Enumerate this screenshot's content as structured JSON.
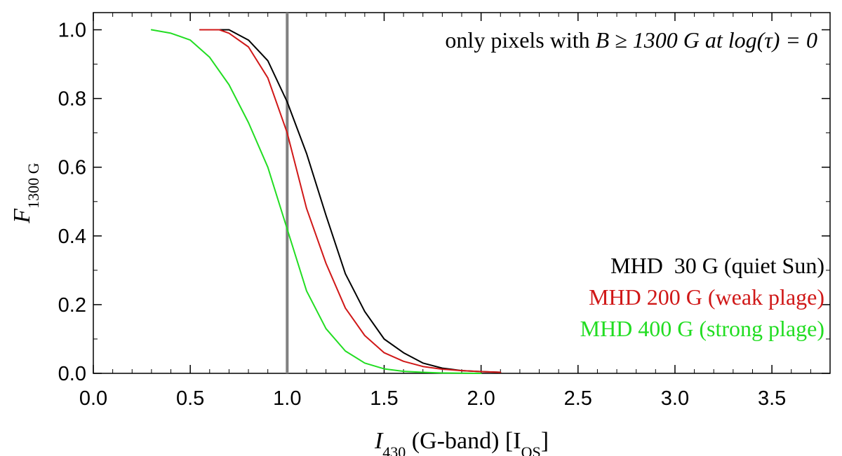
{
  "chart_data": {
    "type": "line",
    "xlabel": {
      "var": "I",
      "sub": "430",
      "text": " (G-band) [I",
      "sub2": "QS",
      "close": "]"
    },
    "ylabel": {
      "var": "F",
      "sub": "1300 G"
    },
    "annotation": {
      "prefix": "only pixels with ",
      "math": "B ≥ 1300 G at log(τ) = 0"
    },
    "xlim": [
      0.0,
      3.8
    ],
    "ylim": [
      0.0,
      1.05
    ],
    "x_ticks": [
      "0.0",
      "0.5",
      "1.0",
      "1.5",
      "2.0",
      "2.5",
      "3.0",
      "3.5"
    ],
    "y_ticks": [
      "0.0",
      "0.2",
      "0.4",
      "0.6",
      "0.8",
      "1.0"
    ],
    "x_tick_values": [
      0.0,
      0.5,
      1.0,
      1.5,
      2.0,
      2.5,
      3.0,
      3.5
    ],
    "y_tick_values": [
      0.0,
      0.2,
      0.4,
      0.6,
      0.8,
      1.0
    ],
    "reference_line": {
      "x": 1.0,
      "color": "#808080"
    },
    "grid": false,
    "legend_position": "right",
    "series": [
      {
        "name": "MHD  30 G (quiet Sun)",
        "color": "#000000",
        "x": [
          0.55,
          0.6,
          0.7,
          0.8,
          0.9,
          1.0,
          1.1,
          1.2,
          1.3,
          1.4,
          1.5,
          1.6,
          1.7,
          1.8,
          1.9,
          2.0,
          2.1
        ],
        "y": [
          1.0,
          1.0,
          1.0,
          0.97,
          0.91,
          0.79,
          0.64,
          0.46,
          0.29,
          0.18,
          0.1,
          0.06,
          0.03,
          0.015,
          0.008,
          0.005,
          0.003
        ]
      },
      {
        "name": "MHD 200 G (weak plage)",
        "color": "#d01818",
        "x": [
          0.55,
          0.6,
          0.65,
          0.7,
          0.8,
          0.9,
          1.0,
          1.1,
          1.2,
          1.3,
          1.4,
          1.5,
          1.6,
          1.7,
          1.8,
          1.9,
          2.0,
          2.1
        ],
        "y": [
          1.0,
          1.0,
          1.0,
          0.99,
          0.95,
          0.86,
          0.7,
          0.48,
          0.32,
          0.19,
          0.11,
          0.06,
          0.035,
          0.02,
          0.012,
          0.008,
          0.005,
          0.003
        ]
      },
      {
        "name": "MHD 400 G (strong plage)",
        "color": "#22dd22",
        "x": [
          0.3,
          0.4,
          0.5,
          0.6,
          0.7,
          0.8,
          0.9,
          1.0,
          1.1,
          1.2,
          1.3,
          1.4,
          1.5,
          1.6,
          1.7,
          1.8,
          1.9,
          2.0
        ],
        "y": [
          1.0,
          0.99,
          0.97,
          0.92,
          0.84,
          0.73,
          0.6,
          0.42,
          0.24,
          0.13,
          0.065,
          0.03,
          0.013,
          0.006,
          0.003,
          0.001,
          0.0005,
          0.0
        ]
      }
    ]
  }
}
